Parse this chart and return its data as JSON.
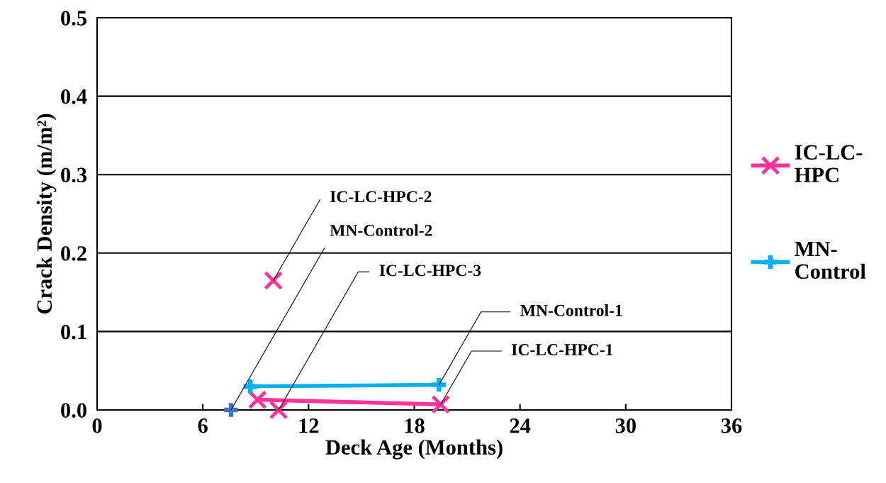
{
  "chart_data": {
    "type": "line",
    "xlabel": "Deck Age (Months)",
    "ylabel": "Crack Density (m/m²)",
    "xlim": [
      0,
      36
    ],
    "xticks": [
      0,
      6,
      12,
      18,
      24,
      30,
      36
    ],
    "ylim": [
      0,
      0.5
    ],
    "yticks": [
      {
        "value": 0,
        "label": "0.0"
      },
      {
        "value": 0.1,
        "label": "0.1"
      },
      {
        "value": 0.2,
        "label": "0.2"
      },
      {
        "value": 0.3,
        "label": "0.3"
      },
      {
        "value": 0.4,
        "label": "0.4"
      },
      {
        "value": 0.5,
        "label": "0.5"
      }
    ],
    "grid": "y",
    "legend": "right",
    "line_style": "solid",
    "series": [
      {
        "name": "IC-LC-HPC",
        "color": "#ff3399",
        "marker": "cross",
        "x": [
          9.1,
          19.5
        ],
        "values": [
          0.013,
          0.007
        ]
      },
      {
        "name": "MN-Control",
        "color": "#00b0f0",
        "marker": "cross",
        "x": [
          8.7,
          19.4
        ],
        "values": [
          0.03,
          0.032
        ]
      },
      {
        "type": "scatter",
        "color": "#ff3399",
        "marker": "cross",
        "x": [
          10.0,
          10.3
        ],
        "values": [
          0.165,
          0
        ]
      },
      {
        "type": "scatter",
        "color": "#4472c4",
        "marker": "cross",
        "x": [
          7.6
        ],
        "values": [
          0
        ]
      }
    ],
    "annotations": [
      {
        "text": "IC-LC-HPC-2",
        "x": 10.0,
        "y": 0.165
      },
      {
        "text": "MN-Control-2",
        "x": 7.6,
        "y": 0
      },
      {
        "text": "IC-LC-HPC-3",
        "x": 10.3,
        "y": 0
      },
      {
        "text": "MN-Control-1",
        "x": 19.4,
        "y": 0.032
      },
      {
        "text": "IC-LC-HPC-1",
        "x": 19.5,
        "y": 0.007
      }
    ]
  }
}
